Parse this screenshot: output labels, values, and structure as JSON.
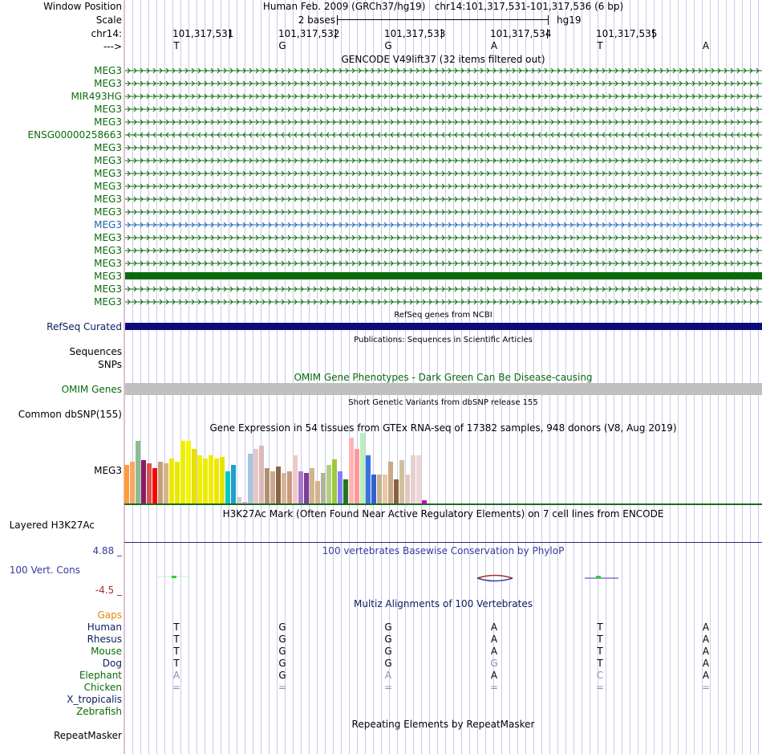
{
  "header": {
    "window_position_label": "Window Position",
    "window_position_value": "Human Feb. 2009 (GRCh37/hg19)   chr14:101,317,531-101,317,536 (6 bp)",
    "scale_label": "Scale",
    "scale_value": "2 bases",
    "assembly": "hg19",
    "chrom_label": "chr14:",
    "strand_label": "--->",
    "coords": [
      "101,317,531",
      "101,317,532",
      "101,317,533",
      "101,317,534",
      "101,317,535"
    ],
    "bases": [
      "T",
      "G",
      "G",
      "A",
      "T",
      "A"
    ]
  },
  "gencode": {
    "title": "GENCODE V49lift37 (32 items filtered out)",
    "items": [
      {
        "label": "MEG3",
        "style": "arrows-right"
      },
      {
        "label": "MEG3",
        "style": "arrows-right"
      },
      {
        "label": "MIR493HG",
        "style": "arrows-right"
      },
      {
        "label": "MEG3",
        "style": "arrows-right"
      },
      {
        "label": "MEG3",
        "style": "arrows-right"
      },
      {
        "label": "ENSG00000258663",
        "style": "arrows-left"
      },
      {
        "label": "MEG3",
        "style": "arrows-right"
      },
      {
        "label": "MEG3",
        "style": "arrows-right"
      },
      {
        "label": "MEG3",
        "style": "arrows-right"
      },
      {
        "label": "MEG3",
        "style": "arrows-right"
      },
      {
        "label": "MEG3",
        "style": "arrows-right"
      },
      {
        "label": "MEG3",
        "style": "arrows-right"
      },
      {
        "label": "MEG3",
        "style": "arrows-right-blue"
      },
      {
        "label": "MEG3",
        "style": "arrows-right"
      },
      {
        "label": "MEG3",
        "style": "arrows-right"
      },
      {
        "label": "MEG3",
        "style": "arrows-right"
      },
      {
        "label": "MEG3",
        "style": "solid"
      },
      {
        "label": "MEG3",
        "style": "arrows-right"
      },
      {
        "label": "MEG3",
        "style": "arrows-right"
      }
    ]
  },
  "refseq": {
    "title": "RefSeq genes from NCBI",
    "label": "RefSeq Curated"
  },
  "publications": {
    "title": "Publications: Sequences in Scientific Articles",
    "sequences_label": "Sequences",
    "snps_label": "SNPs"
  },
  "omim": {
    "title": "OMIM Gene Phenotypes - Dark Green Can Be Disease-causing",
    "label": "OMIM Genes"
  },
  "dbsnp": {
    "title": "Short Genetic Variants from dbSNP release 155",
    "label": "Common dbSNP(155)"
  },
  "gtex": {
    "title": "Gene Expression in 54 tissues from GTEx RNA-seq of 17382 samples, 948 donors (V8, Aug 2019)",
    "label": "MEG3",
    "tissue_count": 54,
    "bar_color_scheme": "GTEx tissue colors"
  },
  "h3k27ac": {
    "title": "H3K27Ac Mark (Often Found Near Active Regulatory Elements) on 7 cell lines from ENCODE",
    "label": "Layered H3K27Ac"
  },
  "conservation": {
    "title": "100 vertebrates Basewise Conservation by PhyloP",
    "label": "100 Vert. Cons",
    "max_label": "4.88 _",
    "min_label": "-4.5 _"
  },
  "multiz": {
    "title": "Multiz Alignments of 100 Vertebrates",
    "gaps_label": "Gaps",
    "species": [
      {
        "name": "Human",
        "bases": [
          "T",
          "G",
          "G",
          "A",
          "T",
          "A"
        ],
        "color": "navy"
      },
      {
        "name": "Rhesus",
        "bases": [
          "T",
          "G",
          "G",
          "A",
          "T",
          "A"
        ],
        "color": "navy"
      },
      {
        "name": "Mouse",
        "bases": [
          "T",
          "G",
          "G",
          "A",
          "T",
          "A"
        ],
        "color": "green"
      },
      {
        "name": "Dog",
        "bases": [
          "T",
          "G",
          "G",
          "G",
          "T",
          "A"
        ],
        "color": "navy"
      },
      {
        "name": "Elephant",
        "bases": [
          "A",
          "G",
          "A",
          "A",
          "C",
          "A"
        ],
        "color": "green"
      },
      {
        "name": "Chicken",
        "bases": [
          "=",
          "=",
          "=",
          "=",
          "=",
          "="
        ],
        "color": "green"
      },
      {
        "name": "X_tropicalis",
        "bases": [
          "",
          "",
          "",
          "",
          "",
          ""
        ],
        "color": "navy"
      },
      {
        "name": "Zebrafish",
        "bases": [
          "",
          "",
          "",
          "",
          "",
          ""
        ],
        "color": "green"
      }
    ],
    "mismatch_flags": [
      [
        false,
        false,
        false,
        false,
        false,
        false
      ],
      [
        false,
        false,
        false,
        false,
        false,
        false
      ],
      [
        false,
        false,
        false,
        false,
        false,
        false
      ],
      [
        false,
        false,
        false,
        true,
        false,
        false
      ],
      [
        true,
        false,
        true,
        false,
        true,
        false
      ],
      [
        true,
        true,
        true,
        true,
        true,
        true
      ],
      [
        false,
        false,
        false,
        false,
        false,
        false
      ],
      [
        false,
        false,
        false,
        false,
        false,
        false
      ]
    ]
  },
  "repeatmasker": {
    "title": "Repeating Elements by RepeatMasker",
    "label": "RepeatMasker"
  },
  "colors": {
    "gene_green": "#0b6b0b",
    "gene_blue": "#1e63b0",
    "refseq_navy": "#0c0c78",
    "omim_grey": "#c0c0c0",
    "cons_blue": "#3a3aa0",
    "cons_red": "#a03020",
    "gaps_orange": "#e08a00"
  }
}
